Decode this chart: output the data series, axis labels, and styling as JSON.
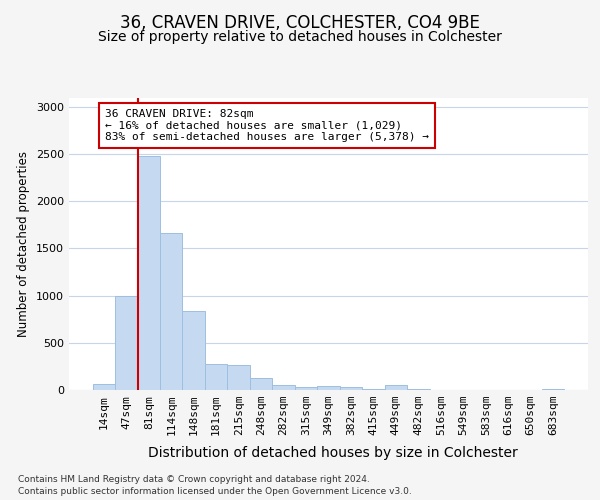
{
  "title": "36, CRAVEN DRIVE, COLCHESTER, CO4 9BE",
  "subtitle": "Size of property relative to detached houses in Colchester",
  "xlabel": "Distribution of detached houses by size in Colchester",
  "ylabel": "Number of detached properties",
  "footer_line1": "Contains HM Land Registry data © Crown copyright and database right 2024.",
  "footer_line2": "Contains public sector information licensed under the Open Government Licence v3.0.",
  "categories": [
    "14sqm",
    "47sqm",
    "81sqm",
    "114sqm",
    "148sqm",
    "181sqm",
    "215sqm",
    "248sqm",
    "282sqm",
    "315sqm",
    "349sqm",
    "382sqm",
    "415sqm",
    "449sqm",
    "482sqm",
    "516sqm",
    "549sqm",
    "583sqm",
    "616sqm",
    "650sqm",
    "683sqm"
  ],
  "values": [
    60,
    1000,
    2480,
    1660,
    840,
    275,
    270,
    130,
    55,
    30,
    45,
    30,
    15,
    50,
    10,
    5,
    5,
    5,
    3,
    3,
    15
  ],
  "bar_color": "#c5d9f0",
  "bar_edge_color": "#9dbfe0",
  "annotation_box_text": "36 CRAVEN DRIVE: 82sqm\n← 16% of detached houses are smaller (1,029)\n83% of semi-detached houses are larger (5,378) →",
  "annotation_box_color": "#ffffff",
  "annotation_box_edge_color": "#cc0000",
  "vline_color": "#cc0000",
  "ylim": [
    0,
    3100
  ],
  "yticks": [
    0,
    500,
    1000,
    1500,
    2000,
    2500,
    3000
  ],
  "background_color": "#f5f5f5",
  "plot_background": "#ffffff",
  "grid_color": "#c8d4e8",
  "title_fontsize": 12,
  "subtitle_fontsize": 10,
  "ylabel_fontsize": 8.5,
  "xlabel_fontsize": 10,
  "footer_fontsize": 6.5,
  "tick_fontsize": 8
}
